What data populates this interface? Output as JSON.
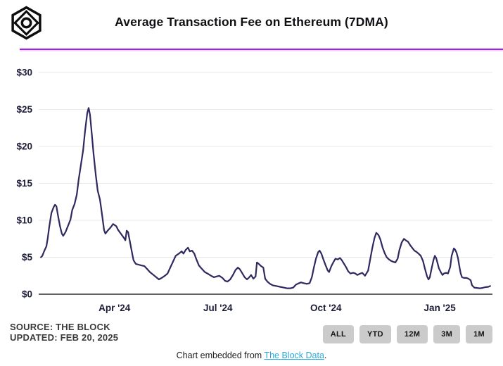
{
  "header": {
    "title": "Average Transaction Fee on Ethereum (7DMA)"
  },
  "colors": {
    "accent_rule": "#a21df2",
    "line": "#2e2a5f",
    "grid": "#e8e8e8",
    "zero_axis": "#2b2b2b",
    "axis_text": "#1c1c38",
    "link": "#29a8dc",
    "button_bg": "#cbcbcb"
  },
  "chart_data": {
    "type": "line",
    "title": "Average Transaction Fee on Ethereum (7DMA)",
    "y_unit": "USD",
    "ylim": [
      0,
      30
    ],
    "yticks": [
      0,
      5,
      10,
      15,
      20,
      25,
      30
    ],
    "ytick_labels": [
      "$0",
      "$5",
      "$10",
      "$15",
      "$20",
      "$25",
      "$30"
    ],
    "grid": "horizontal",
    "legend": "none",
    "xticks": [
      {
        "label": "Apr '24",
        "pos": 0.167
      },
      {
        "label": "Jul '24",
        "pos": 0.395
      },
      {
        "label": "Oct '24",
        "pos": 0.633
      },
      {
        "label": "Jan '25",
        "pos": 0.884
      }
    ],
    "series": [
      {
        "name": "Average transaction fee on Ethereum, USD (7-day moving average)",
        "points": [
          [
            0.005,
            5.0
          ],
          [
            0.008,
            5.2
          ],
          [
            0.012,
            5.8
          ],
          [
            0.017,
            6.5
          ],
          [
            0.02,
            7.6
          ],
          [
            0.023,
            9.0
          ],
          [
            0.028,
            11.0
          ],
          [
            0.033,
            11.8
          ],
          [
            0.036,
            12.1
          ],
          [
            0.039,
            11.9
          ],
          [
            0.043,
            10.5
          ],
          [
            0.047,
            9.2
          ],
          [
            0.051,
            8.2
          ],
          [
            0.054,
            7.9
          ],
          [
            0.059,
            8.4
          ],
          [
            0.065,
            9.3
          ],
          [
            0.07,
            10.1
          ],
          [
            0.074,
            11.4
          ],
          [
            0.079,
            12.2
          ],
          [
            0.084,
            13.5
          ],
          [
            0.088,
            15.5
          ],
          [
            0.093,
            17.5
          ],
          [
            0.098,
            19.5
          ],
          [
            0.102,
            22.0
          ],
          [
            0.107,
            24.5
          ],
          [
            0.11,
            25.2
          ],
          [
            0.113,
            24.3
          ],
          [
            0.116,
            22.4
          ],
          [
            0.121,
            19.0
          ],
          [
            0.126,
            16.0
          ],
          [
            0.13,
            14.0
          ],
          [
            0.135,
            12.8
          ],
          [
            0.14,
            10.6
          ],
          [
            0.144,
            8.7
          ],
          [
            0.147,
            8.2
          ],
          [
            0.152,
            8.6
          ],
          [
            0.158,
            9.0
          ],
          [
            0.164,
            9.5
          ],
          [
            0.171,
            9.2
          ],
          [
            0.175,
            8.7
          ],
          [
            0.181,
            8.2
          ],
          [
            0.188,
            7.6
          ],
          [
            0.191,
            7.3
          ],
          [
            0.194,
            8.6
          ],
          [
            0.197,
            8.4
          ],
          [
            0.202,
            6.8
          ],
          [
            0.206,
            5.5
          ],
          [
            0.209,
            4.6
          ],
          [
            0.214,
            4.1
          ],
          [
            0.22,
            4.0
          ],
          [
            0.226,
            3.9
          ],
          [
            0.233,
            3.8
          ],
          [
            0.239,
            3.4
          ],
          [
            0.245,
            3.0
          ],
          [
            0.253,
            2.6
          ],
          [
            0.259,
            2.3
          ],
          [
            0.265,
            2.0
          ],
          [
            0.271,
            2.2
          ],
          [
            0.278,
            2.5
          ],
          [
            0.284,
            2.8
          ],
          [
            0.29,
            3.6
          ],
          [
            0.296,
            4.4
          ],
          [
            0.302,
            5.2
          ],
          [
            0.309,
            5.5
          ],
          [
            0.315,
            5.8
          ],
          [
            0.319,
            5.5
          ],
          [
            0.324,
            6.0
          ],
          [
            0.329,
            6.3
          ],
          [
            0.333,
            5.8
          ],
          [
            0.338,
            5.9
          ],
          [
            0.343,
            5.5
          ],
          [
            0.347,
            4.8
          ],
          [
            0.353,
            3.9
          ],
          [
            0.36,
            3.4
          ],
          [
            0.366,
            3.0
          ],
          [
            0.372,
            2.8
          ],
          [
            0.38,
            2.5
          ],
          [
            0.386,
            2.3
          ],
          [
            0.392,
            2.4
          ],
          [
            0.398,
            2.5
          ],
          [
            0.405,
            2.2
          ],
          [
            0.411,
            1.8
          ],
          [
            0.416,
            1.7
          ],
          [
            0.422,
            2.0
          ],
          [
            0.428,
            2.6
          ],
          [
            0.434,
            3.3
          ],
          [
            0.439,
            3.6
          ],
          [
            0.443,
            3.4
          ],
          [
            0.448,
            2.9
          ],
          [
            0.454,
            2.3
          ],
          [
            0.459,
            2.0
          ],
          [
            0.464,
            2.3
          ],
          [
            0.468,
            2.6
          ],
          [
            0.473,
            2.1
          ],
          [
            0.478,
            2.4
          ],
          [
            0.481,
            4.3
          ],
          [
            0.485,
            4.1
          ],
          [
            0.49,
            3.8
          ],
          [
            0.495,
            3.6
          ],
          [
            0.499,
            2.1
          ],
          [
            0.504,
            1.7
          ],
          [
            0.51,
            1.4
          ],
          [
            0.516,
            1.2
          ],
          [
            0.524,
            1.1
          ],
          [
            0.532,
            1.0
          ],
          [
            0.54,
            0.9
          ],
          [
            0.547,
            0.8
          ],
          [
            0.555,
            0.8
          ],
          [
            0.561,
            0.9
          ],
          [
            0.567,
            1.3
          ],
          [
            0.574,
            1.5
          ],
          [
            0.578,
            1.6
          ],
          [
            0.584,
            1.5
          ],
          [
            0.591,
            1.4
          ],
          [
            0.597,
            1.5
          ],
          [
            0.602,
            2.3
          ],
          [
            0.606,
            3.5
          ],
          [
            0.611,
            4.8
          ],
          [
            0.616,
            5.7
          ],
          [
            0.619,
            5.9
          ],
          [
            0.623,
            5.5
          ],
          [
            0.628,
            4.6
          ],
          [
            0.633,
            3.8
          ],
          [
            0.637,
            3.2
          ],
          [
            0.64,
            3.0
          ],
          [
            0.645,
            3.8
          ],
          [
            0.65,
            4.4
          ],
          [
            0.654,
            4.8
          ],
          [
            0.659,
            4.7
          ],
          [
            0.664,
            4.9
          ],
          [
            0.668,
            4.6
          ],
          [
            0.673,
            4.1
          ],
          [
            0.678,
            3.6
          ],
          [
            0.682,
            3.1
          ],
          [
            0.687,
            2.8
          ],
          [
            0.693,
            2.9
          ],
          [
            0.698,
            2.8
          ],
          [
            0.702,
            2.6
          ],
          [
            0.709,
            2.8
          ],
          [
            0.713,
            2.9
          ],
          [
            0.719,
            2.5
          ],
          [
            0.726,
            3.2
          ],
          [
            0.73,
            4.5
          ],
          [
            0.735,
            6.2
          ],
          [
            0.74,
            7.6
          ],
          [
            0.744,
            8.3
          ],
          [
            0.749,
            8.0
          ],
          [
            0.753,
            7.4
          ],
          [
            0.758,
            6.3
          ],
          [
            0.763,
            5.5
          ],
          [
            0.767,
            5.0
          ],
          [
            0.772,
            4.7
          ],
          [
            0.777,
            4.5
          ],
          [
            0.781,
            4.4
          ],
          [
            0.786,
            4.3
          ],
          [
            0.791,
            4.8
          ],
          [
            0.795,
            6.0
          ],
          [
            0.8,
            7.0
          ],
          [
            0.805,
            7.5
          ],
          [
            0.809,
            7.3
          ],
          [
            0.814,
            7.1
          ],
          [
            0.819,
            6.6
          ],
          [
            0.823,
            6.3
          ],
          [
            0.828,
            5.9
          ],
          [
            0.833,
            5.7
          ],
          [
            0.837,
            5.5
          ],
          [
            0.842,
            5.2
          ],
          [
            0.847,
            4.5
          ],
          [
            0.851,
            3.5
          ],
          [
            0.856,
            2.4
          ],
          [
            0.859,
            2.0
          ],
          [
            0.862,
            2.3
          ],
          [
            0.865,
            3.2
          ],
          [
            0.87,
            4.6
          ],
          [
            0.873,
            5.2
          ],
          [
            0.876,
            4.9
          ],
          [
            0.879,
            4.2
          ],
          [
            0.882,
            3.5
          ],
          [
            0.887,
            2.9
          ],
          [
            0.89,
            2.6
          ],
          [
            0.893,
            2.8
          ],
          [
            0.898,
            2.9
          ],
          [
            0.902,
            2.8
          ],
          [
            0.907,
            3.7
          ],
          [
            0.91,
            5.2
          ],
          [
            0.915,
            6.2
          ],
          [
            0.918,
            6.0
          ],
          [
            0.921,
            5.6
          ],
          [
            0.924,
            4.9
          ],
          [
            0.927,
            3.8
          ],
          [
            0.93,
            2.8
          ],
          [
            0.933,
            2.3
          ],
          [
            0.938,
            2.2
          ],
          [
            0.943,
            2.2
          ],
          [
            0.947,
            2.1
          ],
          [
            0.952,
            1.9
          ],
          [
            0.955,
            1.2
          ],
          [
            0.96,
            0.9
          ],
          [
            0.966,
            0.85
          ],
          [
            0.972,
            0.8
          ],
          [
            0.978,
            0.85
          ],
          [
            0.984,
            0.95
          ],
          [
            0.991,
            1.0
          ],
          [
            0.995,
            1.1
          ]
        ]
      }
    ]
  },
  "footer": {
    "source_line1": "SOURCE: THE BLOCK",
    "source_line2": "UPDATED: FEB 20, 2025",
    "embed_prefix": "Chart embedded from ",
    "embed_link_text": "The Block Data",
    "embed_suffix": "."
  },
  "controls": {
    "buttons": [
      {
        "label": "ALL"
      },
      {
        "label": "YTD"
      },
      {
        "label": "12M"
      },
      {
        "label": "3M"
      },
      {
        "label": "1M"
      }
    ]
  }
}
